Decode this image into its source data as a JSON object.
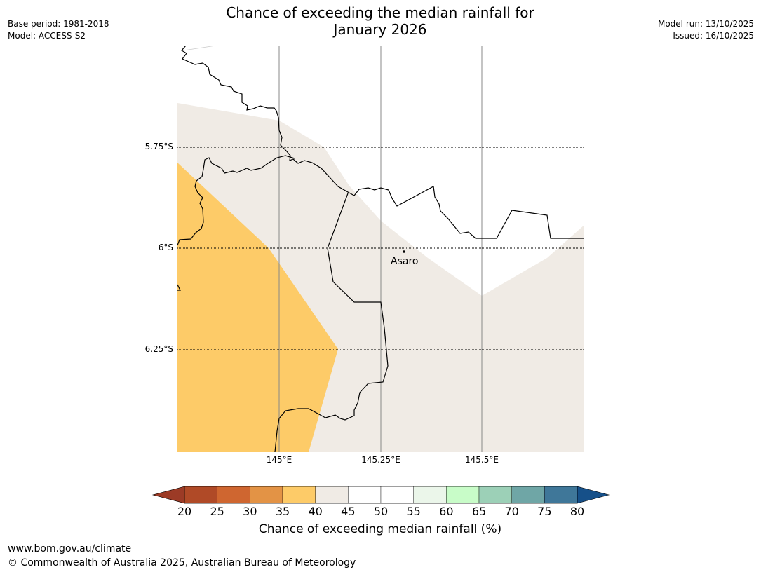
{
  "header": {
    "title_line1": "Chance of exceeding the median rainfall for",
    "title_line2": "January 2026",
    "base_period": "Base period: 1981-2018",
    "model": "Model: ACCESS-S2",
    "model_run": "Model run: 13/10/2025",
    "issued": "Issued: 16/10/2025"
  },
  "map": {
    "lat_labels": [
      "5.75°S",
      "6°S",
      "6.25°S"
    ],
    "lon_labels": [
      "145°E",
      "145.25°E",
      "145.5°E"
    ],
    "place": {
      "name": "Asaro"
    },
    "colors": {
      "band_35_40": "#fdcb68",
      "band_40_45": "#f0ebe5",
      "band_45_50": "#ffffff",
      "border": "#000000",
      "gridline": "#888888"
    }
  },
  "colorbar": {
    "title": "Chance of exceeding median rainfall (%)",
    "ticks": [
      "20",
      "25",
      "30",
      "35",
      "40",
      "45",
      "50",
      "55",
      "60",
      "65",
      "70",
      "75",
      "80"
    ],
    "under_color": "#9c3b26",
    "over_color": "#165089",
    "colors": [
      "#b04a27",
      "#cf6630",
      "#e39345",
      "#fdcb68",
      "#f0ebe5",
      "#ffffff",
      "#ffffff",
      "#ebf6ea",
      "#c8fcc8",
      "#9cd0b7",
      "#6fa6a6",
      "#3f7799"
    ]
  },
  "footer": {
    "url": "www.bom.gov.au/climate",
    "copyright": "© Commonwealth of Australia 2025, Australian Bureau of Meteorology"
  }
}
